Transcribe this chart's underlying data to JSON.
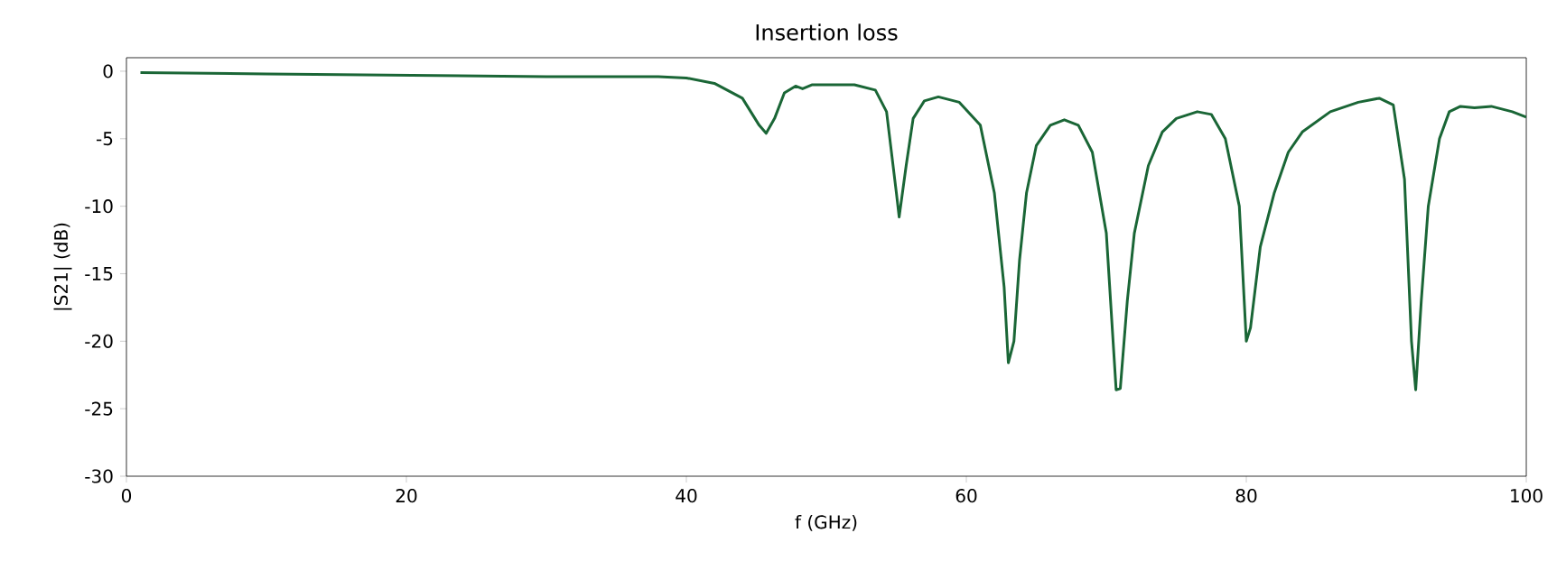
{
  "chart_data": {
    "type": "line",
    "title": "Insertion loss",
    "xlabel": "f (GHz)",
    "ylabel": "|S21| (dB)",
    "xlim": [
      0,
      100
    ],
    "xticks": [
      0,
      20,
      40,
      60,
      80,
      100
    ],
    "ylim": [
      -30,
      1
    ],
    "yticks": [
      -30,
      -25,
      -20,
      -15,
      -10,
      -5,
      0
    ],
    "grid": false,
    "marker": "none",
    "line_style": "solid",
    "series": [
      {
        "color": "#1a6636",
        "x": [
          1,
          10,
          20,
          30,
          38,
          40,
          42,
          44,
          45.2,
          45.7,
          46.3,
          47,
          47.8,
          48.3,
          49,
          52,
          53.5,
          54.3,
          55,
          55.2,
          55.7,
          56.2,
          57,
          58,
          59.5,
          61,
          62,
          62.7,
          63,
          63.4,
          63.8,
          64.3,
          65,
          66,
          67,
          68,
          69,
          70,
          70.7,
          71,
          71.5,
          72,
          73,
          74,
          75,
          76.5,
          77.5,
          78.5,
          79.5,
          80,
          80.3,
          81,
          82,
          83,
          84,
          86,
          88,
          89.5,
          90.5,
          91.3,
          91.8,
          92.1,
          92.5,
          93,
          93.8,
          94.5,
          95.3,
          96.3,
          97.5,
          99,
          100
        ],
        "values": [
          -0.1,
          -0.2,
          -0.3,
          -0.4,
          -0.4,
          -0.5,
          -0.9,
          -2.0,
          -4.0,
          -4.6,
          -3.5,
          -1.6,
          -1.1,
          -1.3,
          -1.0,
          -1.0,
          -1.4,
          -3,
          -9,
          -10.8,
          -7,
          -3.5,
          -2.2,
          -1.9,
          -2.3,
          -4,
          -9,
          -16,
          -21.6,
          -20,
          -14,
          -9,
          -5.5,
          -4,
          -3.6,
          -4,
          -6,
          -12,
          -23.6,
          -23.5,
          -17,
          -12,
          -7,
          -4.5,
          -3.5,
          -3.0,
          -3.2,
          -5,
          -10,
          -20,
          -19,
          -13,
          -9,
          -6,
          -4.5,
          -3,
          -2.3,
          -2.0,
          -2.5,
          -8,
          -20,
          -23.6,
          -17,
          -10,
          -5,
          -3,
          -2.6,
          -2.7,
          -2.6,
          -3.0,
          -3.4
        ]
      }
    ]
  }
}
